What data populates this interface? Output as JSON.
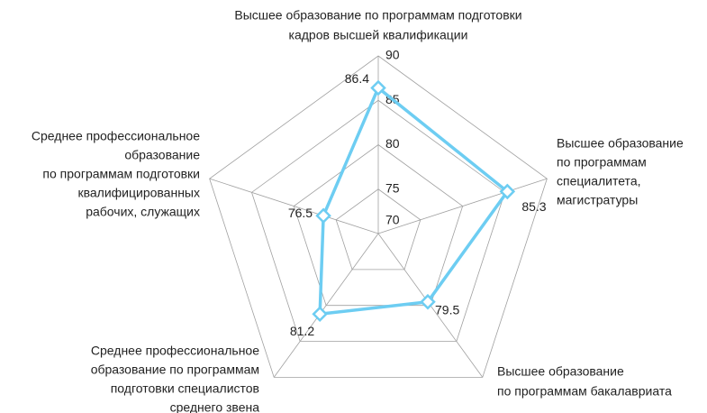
{
  "chart_data": {
    "type": "radar",
    "categories": [
      [
        "Высшее образование по программам подготовки",
        "кадров высшей квалификации"
      ],
      [
        "Высшее образование",
        "по программам",
        "специалитета,",
        "магистратуры"
      ],
      [
        "Высшее образование",
        "по программам бакалавриата"
      ],
      [
        "Среднее профессиональное",
        "образование по программам",
        "подготовки специалистов",
        "среднего звена"
      ],
      [
        "Среднее профессиональное",
        "образование",
        "по программам подготовки",
        "квалифицированных",
        "рабочих, служащих"
      ]
    ],
    "values": [
      86.4,
      85.3,
      79.5,
      81.2,
      76.5
    ],
    "color": "#6dcdf2",
    "ylim": [
      70,
      90
    ],
    "yticks": [
      70,
      75,
      80,
      85,
      90
    ],
    "grid": true
  }
}
